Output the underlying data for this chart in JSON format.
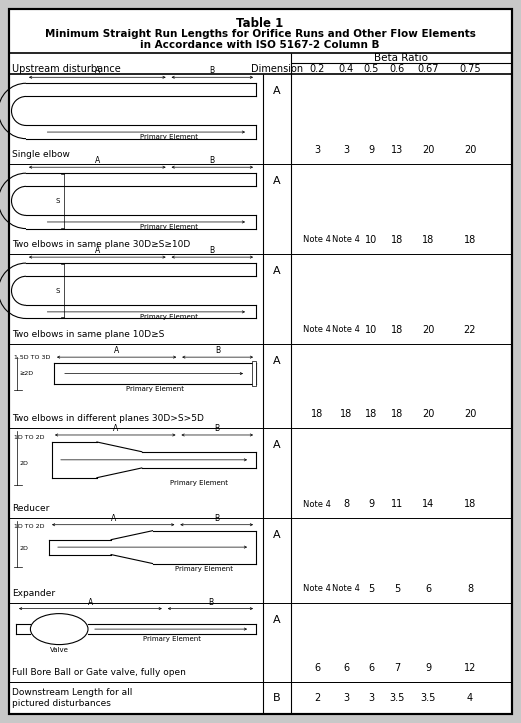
{
  "title_line1": "Table 1",
  "title_line2": "Minimum Straight Run Lengths for Orifice Runs and Other Flow Elements",
  "title_line3": "in Accordance with ISO 5167-2 Column B",
  "beta_values": [
    "0.2",
    "0.4",
    "0.5",
    "0.6",
    "0.67",
    "0.75"
  ],
  "rows": [
    {
      "label": "Single elbow",
      "dim": "A",
      "values": [
        "3",
        "3",
        "9",
        "13",
        "20",
        "20"
      ],
      "diagram": "single_elbow"
    },
    {
      "label": "Two elbows in same plane 30D≥S≥10D",
      "dim": "A",
      "values": [
        "Note 4",
        "Note 4",
        "10",
        "18",
        "18",
        "18"
      ],
      "diagram": "two_elbow_same_large"
    },
    {
      "label": "Two elbows in same plane 10D≥S",
      "dim": "A",
      "values": [
        "Note 4",
        "Note 4",
        "10",
        "18",
        "20",
        "22"
      ],
      "diagram": "two_elbow_same_small"
    },
    {
      "label": "Two elbows in different planes 30D>S>5D",
      "dim": "A",
      "values": [
        "18",
        "18",
        "18",
        "18",
        "20",
        "20"
      ],
      "diagram": "two_elbow_diff"
    },
    {
      "label": "Reducer",
      "dim": "A",
      "values": [
        "Note 4",
        "8",
        "9",
        "11",
        "14",
        "18"
      ],
      "diagram": "reducer"
    },
    {
      "label": "Expander",
      "dim": "A",
      "values": [
        "Note 4",
        "Note 4",
        "5",
        "5",
        "6",
        "8"
      ],
      "diagram": "expander"
    },
    {
      "label": "Full Bore Ball or Gate valve, fully open",
      "dim": "A",
      "values": [
        "6",
        "6",
        "6",
        "7",
        "9",
        "12"
      ],
      "diagram": "valve"
    }
  ],
  "downstream": {
    "label": "Downstream Length for all\npictured disturbances",
    "dim": "B",
    "values": [
      "2",
      "3",
      "3",
      "3.5",
      "3.5",
      "4"
    ]
  }
}
